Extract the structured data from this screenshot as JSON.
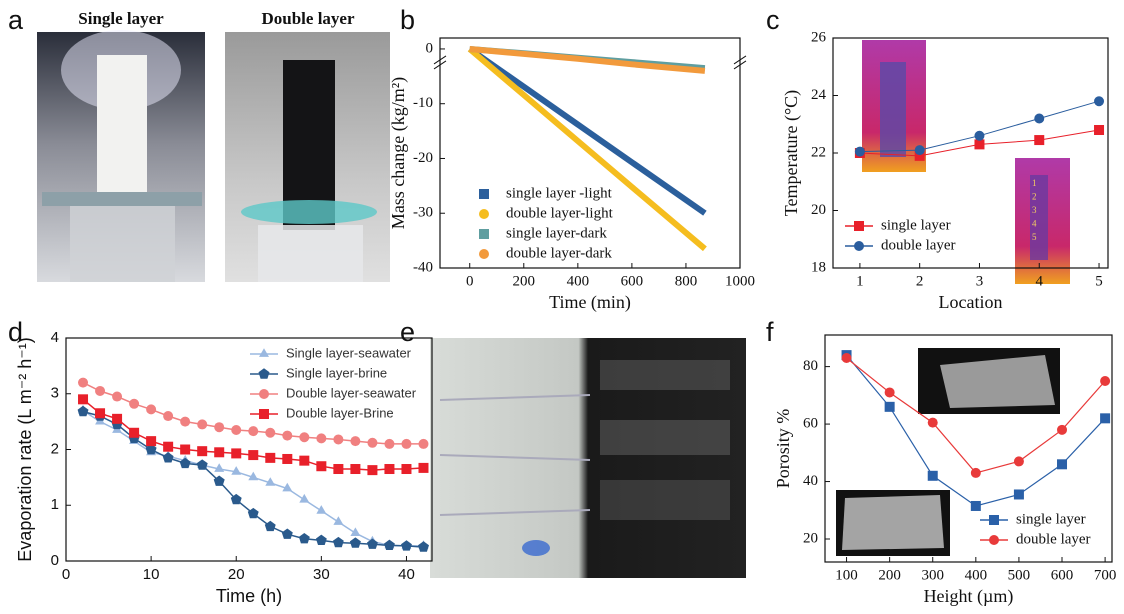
{
  "panel_labels": [
    "a",
    "b",
    "c",
    "d",
    "e",
    "f"
  ],
  "photo_titles": [
    "Single layer",
    "Double layer"
  ],
  "chart_data": [
    {
      "type": "line",
      "xlabel": "Time (min)",
      "ylabel": "Mass change (kg/m²)",
      "x": [
        0,
        200,
        400,
        600,
        870
      ],
      "xlim": [
        -110,
        1000
      ],
      "xticks": [
        0,
        200,
        400,
        600,
        800,
        1000
      ],
      "ylim": [
        -40,
        2
      ],
      "yticks": [
        0,
        -10,
        -20,
        -30,
        -40
      ],
      "legend": "lower left",
      "series": [
        {
          "name": "single layer -light",
          "color": "#2b5f9c",
          "marker": "square",
          "values": [
            0,
            -6.9,
            -13.8,
            -20.7,
            -30
          ]
        },
        {
          "name": "double layer-light",
          "color": "#f5bd1f",
          "marker": "circle",
          "values": [
            0,
            -8.4,
            -16.8,
            -25.2,
            -36.5
          ]
        },
        {
          "name": "single layer-dark",
          "color": "#5f9ea0",
          "marker": "square",
          "values": [
            0,
            -0.8,
            -1.6,
            -2.4,
            -3.5
          ]
        },
        {
          "name": "double layer-dark",
          "color": "#f29a3c",
          "marker": "circle",
          "values": [
            0,
            -0.9,
            -1.8,
            -2.8,
            -4
          ]
        }
      ]
    },
    {
      "type": "line",
      "xlabel": "Location",
      "ylabel": "Temperature (°C)",
      "x": [
        1,
        2,
        3,
        4,
        5
      ],
      "xlim": [
        0.55,
        5.15
      ],
      "xticks": [
        1,
        2,
        3,
        4,
        5
      ],
      "ylim": [
        18,
        26
      ],
      "yticks": [
        18,
        20,
        22,
        24,
        26
      ],
      "legend": "lower left",
      "inset_labels": [
        "1",
        "2",
        "3",
        "4",
        "5"
      ],
      "series": [
        {
          "name": "single layer",
          "color": "#e8202a",
          "marker": "square",
          "values": [
            22.0,
            21.9,
            22.3,
            22.45,
            22.8
          ]
        },
        {
          "name": "double layer",
          "color": "#2a5d9e",
          "marker": "circle",
          "values": [
            22.05,
            22.1,
            22.6,
            23.2,
            23.8
          ]
        }
      ]
    },
    {
      "type": "line",
      "xlabel": "Time (h)",
      "ylabel": "Evaporation rate (L m⁻² h⁻¹)",
      "x": [
        2,
        4,
        6,
        8,
        10,
        12,
        14,
        16,
        18,
        20,
        22,
        24,
        26,
        28,
        30,
        32,
        34,
        36,
        38,
        40,
        42
      ],
      "xlim": [
        0,
        43
      ],
      "xticks": [
        0,
        10,
        20,
        30,
        40
      ],
      "ylim": [
        0,
        4
      ],
      "yticks": [
        0,
        1,
        2,
        3,
        4
      ],
      "legend": "upper right",
      "series": [
        {
          "name": "Single layer-seawater",
          "color": "#9ab8e0",
          "marker": "triangle",
          "values": [
            2.7,
            2.5,
            2.35,
            2.15,
            1.95,
            1.88,
            1.8,
            1.72,
            1.65,
            1.6,
            1.5,
            1.4,
            1.3,
            1.1,
            0.9,
            0.7,
            0.5,
            0.35,
            0.28,
            0.27,
            0.27
          ]
        },
        {
          "name": "Single layer-brine",
          "color": "#2a5a8c",
          "marker": "pentagon",
          "values": [
            2.68,
            2.6,
            2.45,
            2.2,
            2.0,
            1.85,
            1.75,
            1.72,
            1.43,
            1.1,
            0.85,
            0.62,
            0.48,
            0.4,
            0.37,
            0.33,
            0.32,
            0.3,
            0.28,
            0.27,
            0.25
          ]
        },
        {
          "name": "Double layer-seawater",
          "color": "#f08080",
          "marker": "circle",
          "values": [
            3.2,
            3.05,
            2.95,
            2.82,
            2.72,
            2.6,
            2.5,
            2.45,
            2.4,
            2.35,
            2.33,
            2.3,
            2.25,
            2.22,
            2.2,
            2.18,
            2.15,
            2.12,
            2.1,
            2.1,
            2.1
          ]
        },
        {
          "name": "Double layer-Brine",
          "color": "#e8202a",
          "marker": "square",
          "values": [
            2.9,
            2.65,
            2.55,
            2.3,
            2.15,
            2.05,
            2.0,
            1.97,
            1.95,
            1.93,
            1.9,
            1.85,
            1.83,
            1.8,
            1.7,
            1.65,
            1.65,
            1.63,
            1.65,
            1.65,
            1.67
          ]
        }
      ]
    },
    {
      "type": "line",
      "xlabel": "Height (µm)",
      "ylabel": "Porosity  %",
      "x": [
        100,
        200,
        300,
        400,
        500,
        600,
        700
      ],
      "xlim": [
        50,
        716
      ],
      "xticks": [
        100,
        200,
        300,
        400,
        500,
        600,
        700
      ],
      "ylim": [
        12,
        91
      ],
      "yticks": [
        20,
        40,
        60,
        80
      ],
      "legend": "lower right",
      "series": [
        {
          "name": "single layer",
          "color": "#2a60a8",
          "marker": "square",
          "values": [
            84,
            66,
            42,
            31.5,
            35.5,
            46,
            62
          ]
        },
        {
          "name": "double layer",
          "color": "#e83a3a",
          "marker": "circle",
          "values": [
            83,
            71,
            60.5,
            43,
            47,
            58,
            75
          ]
        }
      ]
    }
  ]
}
